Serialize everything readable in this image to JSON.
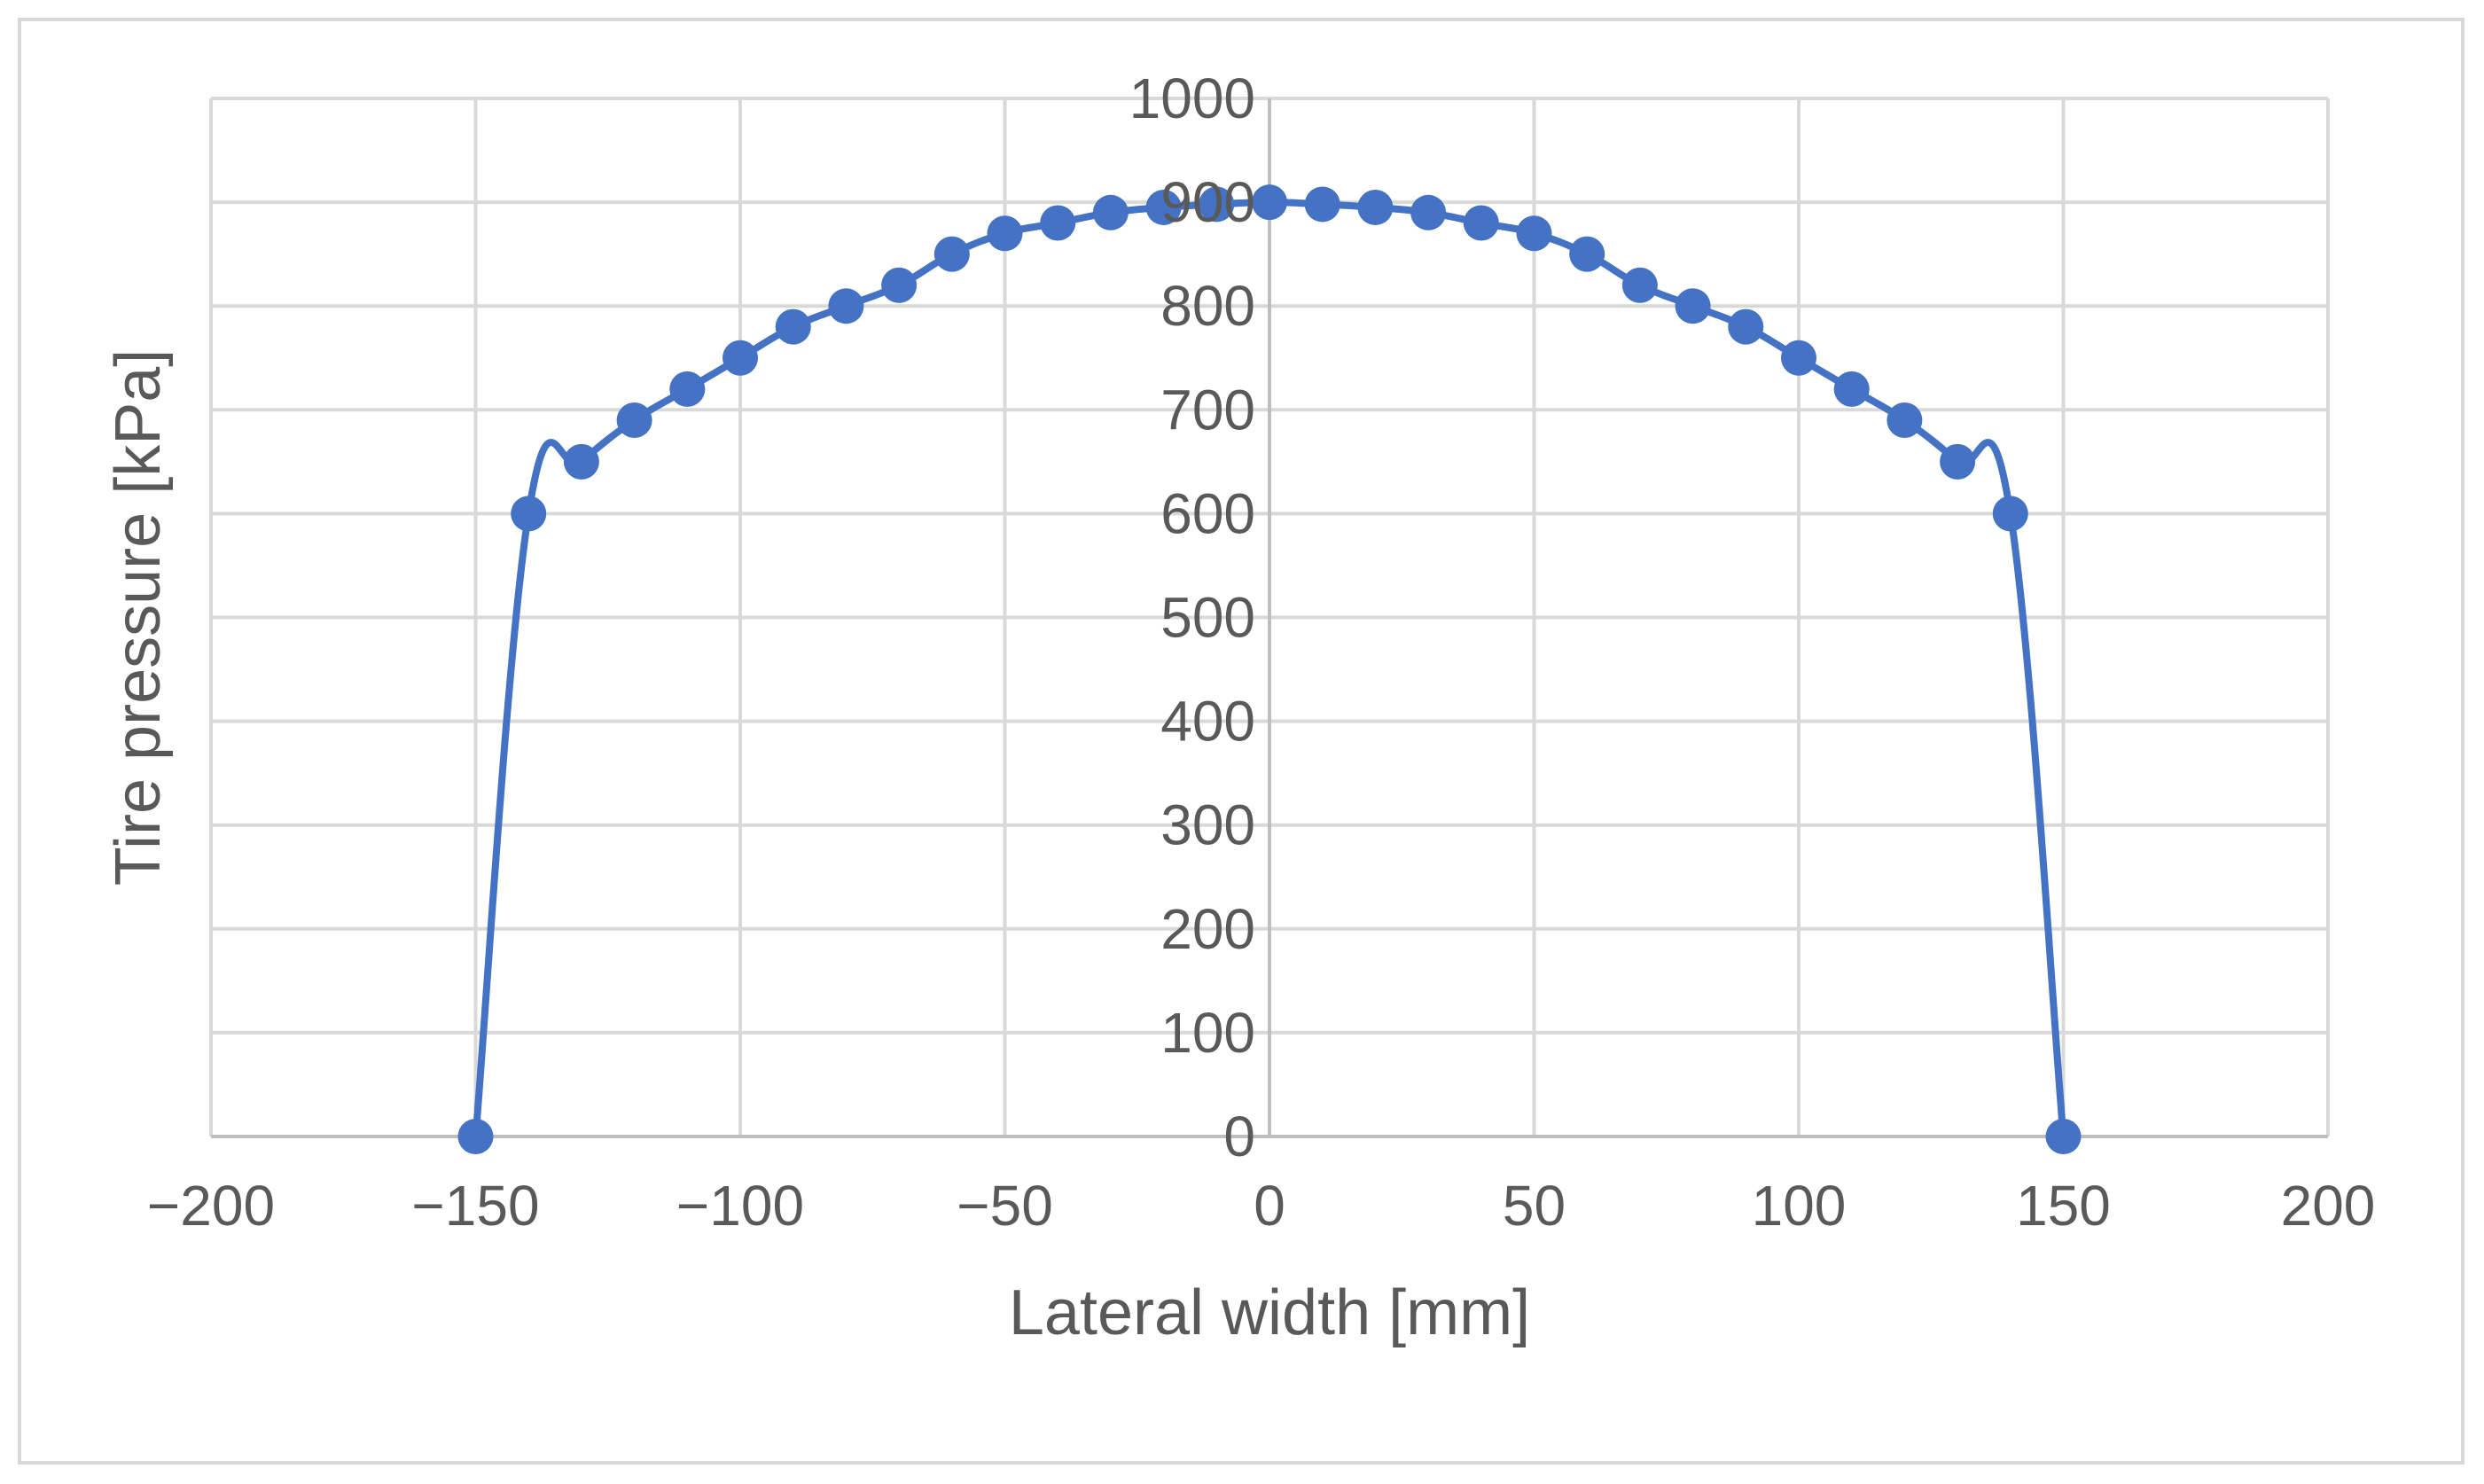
{
  "chart_data": {
    "type": "line",
    "xlabel": "Lateral width [mm]",
    "ylabel": "Tire pressure [kPa]",
    "xlim": [
      -200,
      200
    ],
    "ylim": [
      0,
      1000
    ],
    "x_ticks": [
      -200,
      -150,
      -100,
      -50,
      0,
      50,
      100,
      150,
      200
    ],
    "x_tick_labels": [
      "−200",
      "−150",
      "−100",
      "−50",
      "0",
      "50",
      "100",
      "150",
      "200"
    ],
    "y_ticks": [
      0,
      100,
      200,
      300,
      400,
      500,
      600,
      700,
      800,
      900,
      1000
    ],
    "y_tick_labels": [
      "0",
      "100",
      "200",
      "300",
      "400",
      "500",
      "600",
      "700",
      "800",
      "900",
      "1000"
    ],
    "grid": true,
    "legend": "none",
    "colors": {
      "series": "#4472c4",
      "grid": "#d9d9d9",
      "text": "#595959"
    },
    "series": [
      {
        "marker": "circle",
        "x": [
          -150,
          -140,
          -130,
          -120,
          -110,
          -100,
          -90,
          -80,
          -70,
          -60,
          -50,
          -40,
          -30,
          -20,
          -10,
          0,
          10,
          20,
          30,
          40,
          50,
          60,
          70,
          80,
          90,
          100,
          110,
          120,
          130,
          140,
          150
        ],
        "y": [
          0,
          600,
          650,
          690,
          720,
          750,
          780,
          800,
          820,
          850,
          870,
          880,
          890,
          895,
          898,
          900,
          898,
          895,
          890,
          880,
          870,
          850,
          820,
          800,
          780,
          750,
          720,
          690,
          650,
          600,
          0
        ]
      }
    ]
  }
}
